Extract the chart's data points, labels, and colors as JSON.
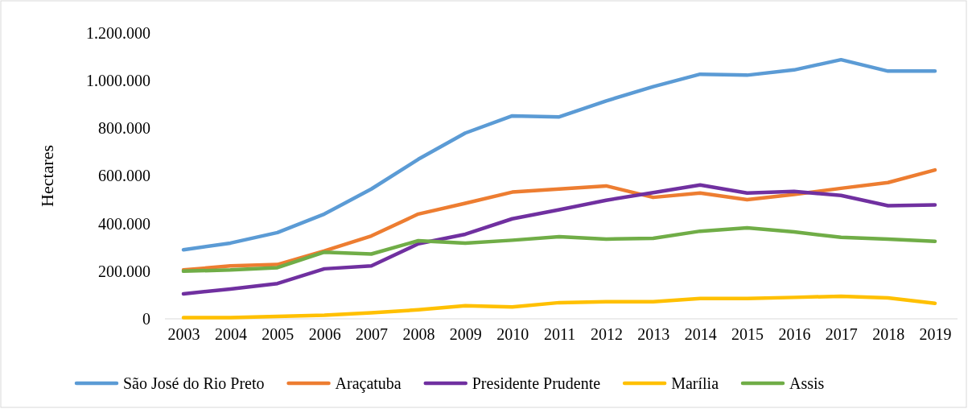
{
  "chart_data": {
    "type": "line",
    "ylabel": "Hectares",
    "categories": [
      "2003",
      "2004",
      "2005",
      "2006",
      "2007",
      "2008",
      "2009",
      "2010",
      "2011",
      "2012",
      "2013",
      "2014",
      "2015",
      "2016",
      "2017",
      "2018",
      "2019"
    ],
    "series": [
      {
        "name": "São José do Rio Preto",
        "color": "#5b9bd5",
        "values": [
          290000,
          318000,
          362000,
          440000,
          545000,
          670000,
          780000,
          852000,
          848000,
          915000,
          975000,
          1027000,
          1023000,
          1045000,
          1088000,
          1040000,
          1040000
        ]
      },
      {
        "name": "Araçatuba",
        "color": "#ed7d31",
        "values": [
          205000,
          222000,
          228000,
          285000,
          348000,
          440000,
          485000,
          532000,
          545000,
          558000,
          510000,
          528000,
          500000,
          522000,
          548000,
          572000,
          625000
        ]
      },
      {
        "name": "Presidente Prudente",
        "color": "#7030a0",
        "values": [
          105000,
          125000,
          148000,
          210000,
          222000,
          315000,
          355000,
          420000,
          458000,
          498000,
          530000,
          562000,
          528000,
          535000,
          518000,
          475000,
          478000
        ]
      },
      {
        "name": "Marília",
        "color": "#ffc000",
        "values": [
          5000,
          5000,
          10000,
          15000,
          25000,
          38000,
          55000,
          50000,
          68000,
          72000,
          72000,
          85000,
          85000,
          90000,
          95000,
          88000,
          65000
        ]
      },
      {
        "name": "Assis",
        "color": "#70ad47",
        "values": [
          200000,
          205000,
          215000,
          280000,
          272000,
          328000,
          318000,
          330000,
          345000,
          335000,
          338000,
          368000,
          382000,
          365000,
          342000,
          335000,
          325000
        ]
      }
    ],
    "ylim": [
      0,
      1200000
    ],
    "yticks": [
      {
        "value": 0,
        "label": "0"
      },
      {
        "value": 200000,
        "label": "200.000"
      },
      {
        "value": 400000,
        "label": "400.000"
      },
      {
        "value": 600000,
        "label": "600.000"
      },
      {
        "value": 800000,
        "label": "800.000"
      },
      {
        "value": 1000000,
        "label": "1.000.000"
      },
      {
        "value": 1200000,
        "label": "1.200.000"
      }
    ],
    "legend": "bottom",
    "marker": "none",
    "line_style": "solid"
  }
}
